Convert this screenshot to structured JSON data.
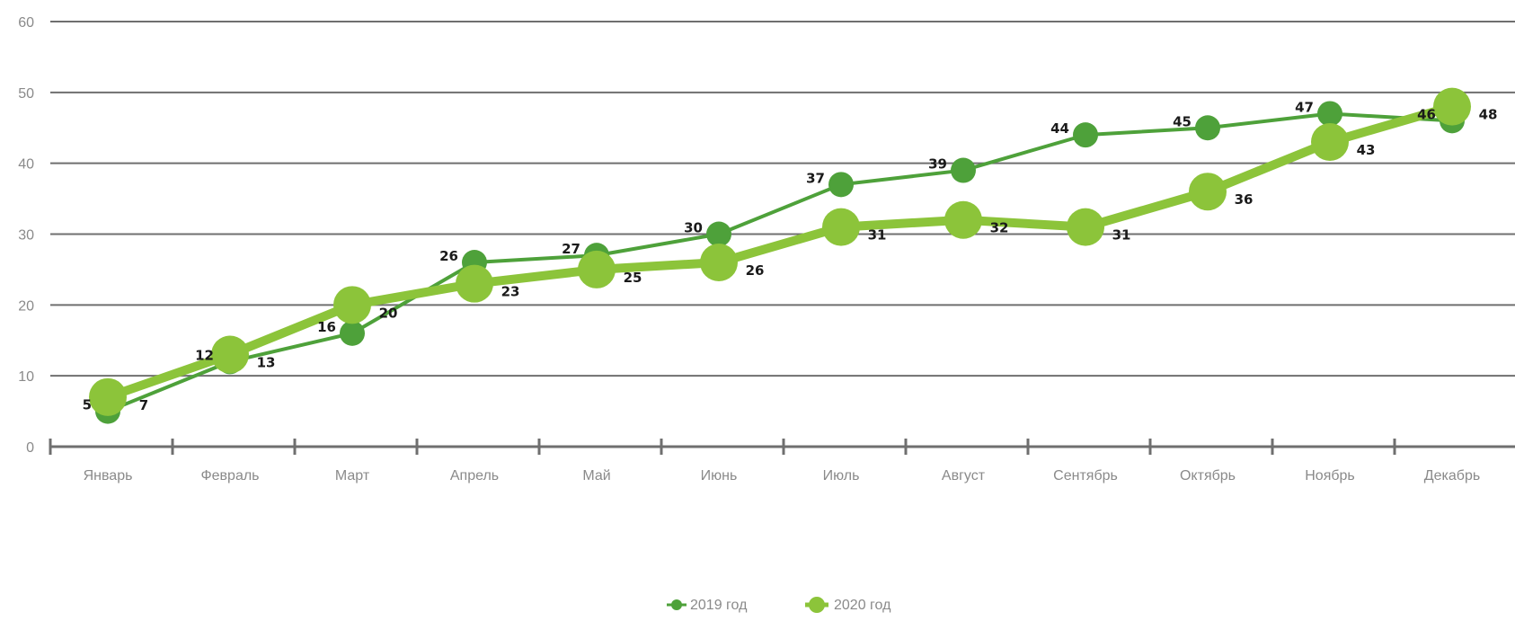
{
  "chart_data": {
    "type": "line",
    "categories": [
      "Январь",
      "Февраль",
      "Март",
      "Апрель",
      "Май",
      "Июнь",
      "Июль",
      "Август",
      "Сентябрь",
      "Октябрь",
      "Ноябрь",
      "Декабрь"
    ],
    "ylim": [
      0,
      60
    ],
    "yticks": [
      "0",
      "10",
      "20",
      "30",
      "40",
      "50",
      "60"
    ],
    "grid": true,
    "legend_position": "bottom-center",
    "series": [
      {
        "name": "2019 год",
        "color": "#4ea13a",
        "values": [
          5,
          12,
          16,
          26,
          27,
          30,
          37,
          39,
          44,
          45,
          47,
          46
        ]
      },
      {
        "name": "2020 год",
        "color": "#8cc43a",
        "values": [
          7,
          13,
          20,
          23,
          25,
          26,
          31,
          32,
          31,
          36,
          43,
          48
        ]
      }
    ]
  }
}
